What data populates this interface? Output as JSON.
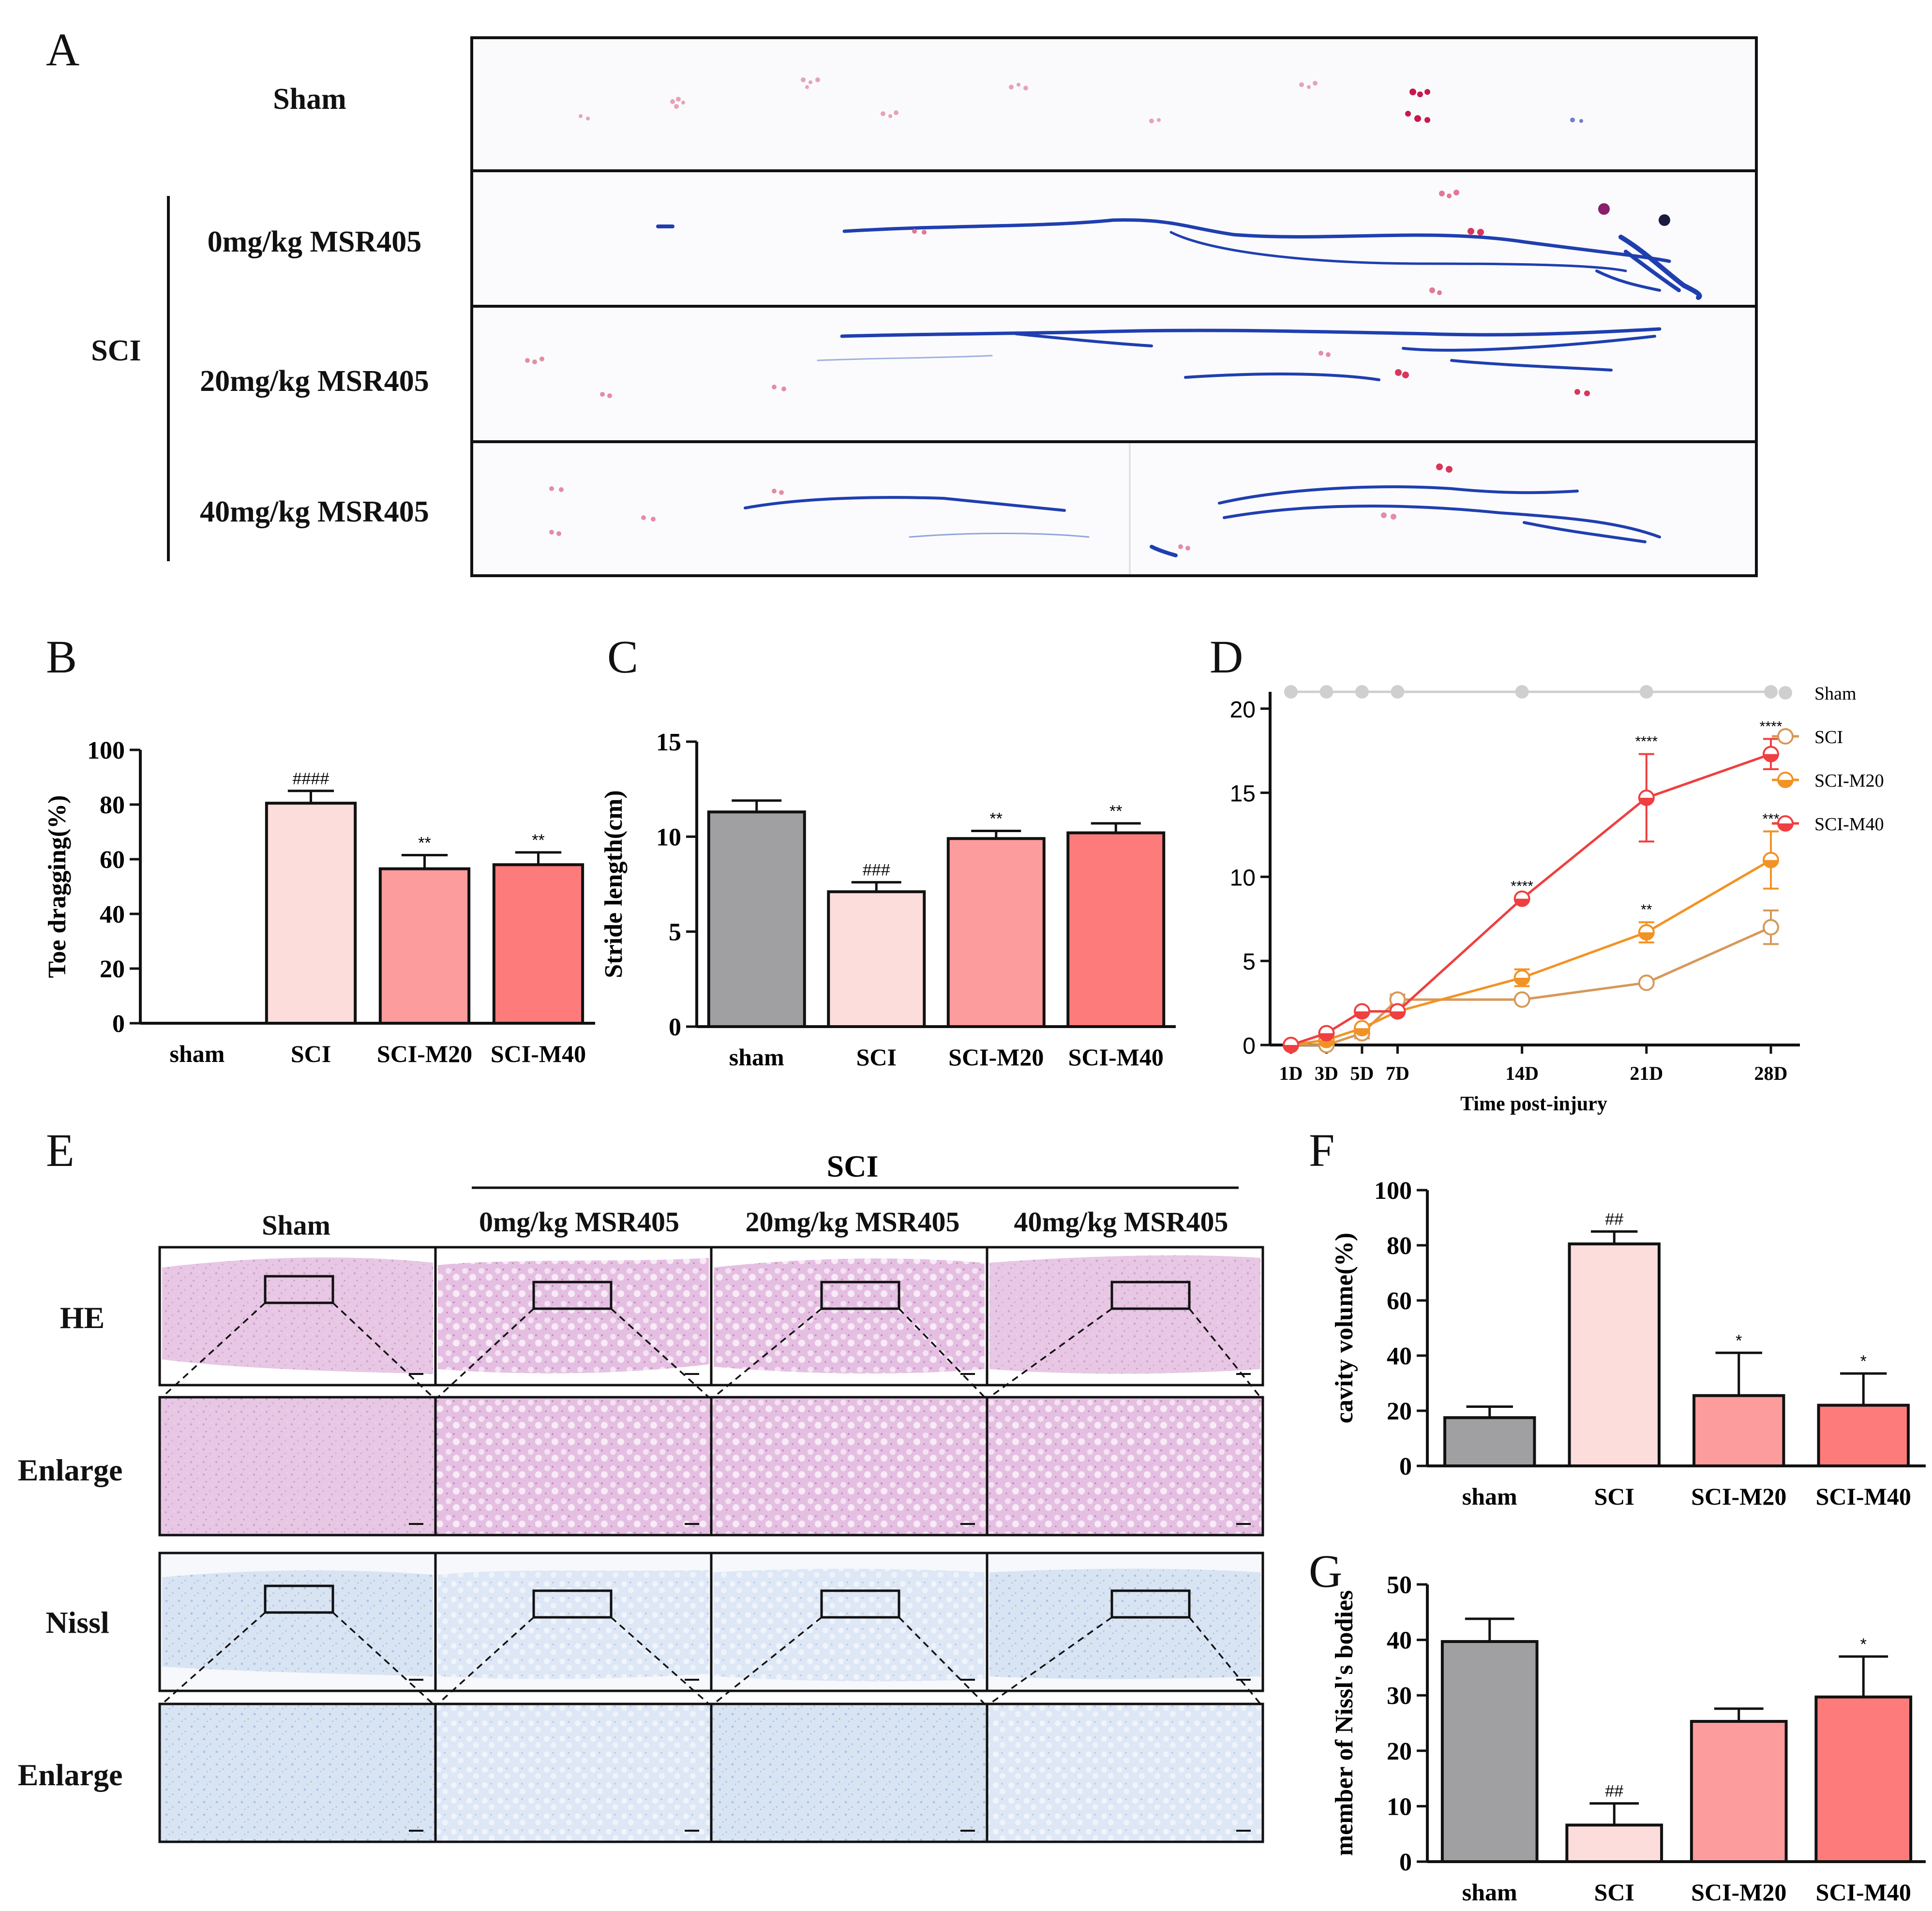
{
  "colors": {
    "sham": "#a0a0a2",
    "sci": "#fddcdc",
    "m20": "#fc9c9c",
    "m40": "#fd7b7b",
    "line_sham": "#cfcfcf",
    "line_sci": "#d69858",
    "line_m20": "#f39224",
    "line_m40": "#ef3f40",
    "he_stain": "#e3bfe0",
    "nissl_stain": "#d8e2f2",
    "ink_blue": "#1f3fb0",
    "ink_red": "#d8365a"
  },
  "panel_letters": {
    "a": "A",
    "b": "B",
    "c": "C",
    "d": "D",
    "e": "E",
    "f": "F",
    "g": "G"
  },
  "panelA": {
    "rows": [
      "Sham",
      "0mg/kg MSR405",
      "20mg/kg MSR405",
      "40mg/kg MSR405"
    ],
    "group_label": "SCI"
  },
  "panelE": {
    "group_label": "SCI",
    "columns": [
      "Sham",
      "0mg/kg MSR405",
      "20mg/kg MSR405",
      "40mg/kg MSR405"
    ],
    "rows": [
      "HE",
      "Enlarge",
      "Nissl",
      "Enlarge"
    ]
  },
  "chart_data": [
    {
      "panel": "B",
      "type": "bar",
      "ylabel": "Toe dragging(%)",
      "xlabel": "",
      "categories": [
        "sham",
        "SCI",
        "SCI-M20",
        "SCI-M40"
      ],
      "values": [
        0,
        80.5,
        56.5,
        58
      ],
      "errors": [
        0,
        4.5,
        5,
        4.5
      ],
      "annotations": [
        "",
        "####",
        "**",
        "**"
      ],
      "ylim": [
        0,
        100
      ],
      "yticks": [
        "0",
        "20",
        "40",
        "60",
        "80",
        "100"
      ]
    },
    {
      "panel": "C",
      "type": "bar",
      "ylabel": "Stride length(cm)",
      "xlabel": "",
      "categories": [
        "sham",
        "SCI",
        "SCI-M20",
        "SCI-M40"
      ],
      "values": [
        11.3,
        7.1,
        9.9,
        10.2
      ],
      "errors": [
        0.6,
        0.5,
        0.4,
        0.5
      ],
      "annotations": [
        "",
        "###",
        "**",
        "**"
      ],
      "ylim": [
        0,
        15
      ],
      "yticks": [
        "0",
        "5",
        "10",
        "15"
      ]
    },
    {
      "panel": "D",
      "type": "line",
      "xlabel": "Time post-injury",
      "ylabel": "",
      "x": [
        1,
        3,
        5,
        7,
        14,
        21,
        28
      ],
      "xticks": [
        "1D",
        "3D",
        "5D",
        "7D",
        "14D",
        "21D",
        "28D"
      ],
      "ylim": [
        0,
        21
      ],
      "yticks": [
        "0",
        "5",
        "10",
        "15",
        "20"
      ],
      "legend": "right",
      "series": [
        {
          "name": "Sham",
          "values": [
            21,
            21,
            21,
            21,
            21,
            21,
            21
          ],
          "errors": [
            0,
            0,
            0,
            0,
            0,
            0,
            0
          ],
          "annotations": [
            "",
            "",
            "",
            "",
            "",
            "",
            ""
          ]
        },
        {
          "name": "SCI",
          "values": [
            0,
            0,
            0.7,
            2.7,
            2.7,
            3.7,
            7.0
          ],
          "errors": [
            0,
            0,
            0.3,
            0.3,
            0,
            0,
            1.0
          ],
          "annotations": [
            "",
            "",
            "",
            "",
            "",
            "",
            ""
          ]
        },
        {
          "name": "SCI-M20",
          "values": [
            0,
            0.3,
            1.0,
            2.0,
            4.0,
            6.7,
            11.0
          ],
          "errors": [
            0,
            0,
            0,
            0,
            0.5,
            0.6,
            1.7
          ],
          "annotations": [
            "",
            "",
            "",
            "",
            "",
            "**",
            "***"
          ]
        },
        {
          "name": "SCI-M40",
          "values": [
            0,
            0.7,
            2.0,
            2.0,
            8.7,
            14.7,
            17.3
          ],
          "errors": [
            0,
            0,
            0,
            0,
            0,
            2.6,
            0.9
          ],
          "annotations": [
            "",
            "",
            "",
            "",
            "****",
            "****",
            "****"
          ]
        }
      ]
    },
    {
      "panel": "F",
      "type": "bar",
      "ylabel": "cavity volume(%)",
      "xlabel": "",
      "categories": [
        "sham",
        "SCI",
        "SCI-M20",
        "SCI-M40"
      ],
      "values": [
        17.5,
        80.5,
        25.5,
        22
      ],
      "errors": [
        4,
        4.5,
        15.5,
        11.5
      ],
      "annotations": [
        "",
        "##",
        "*",
        "*"
      ],
      "ylim": [
        0,
        100
      ],
      "yticks": [
        "0",
        "20",
        "40",
        "60",
        "80",
        "100"
      ]
    },
    {
      "panel": "G",
      "type": "bar",
      "ylabel": "member of Nissl's bodies",
      "xlabel": "",
      "categories": [
        "sham",
        "SCI",
        "SCI-M20",
        "SCI-M40"
      ],
      "values": [
        39.7,
        6.6,
        25.3,
        29.7
      ],
      "errors": [
        4.1,
        3.9,
        2.3,
        7.3
      ],
      "annotations": [
        "",
        "##",
        "",
        "*"
      ],
      "ylim": [
        0,
        50
      ],
      "yticks": [
        "0",
        "10",
        "20",
        "30",
        "40",
        "50"
      ]
    }
  ]
}
